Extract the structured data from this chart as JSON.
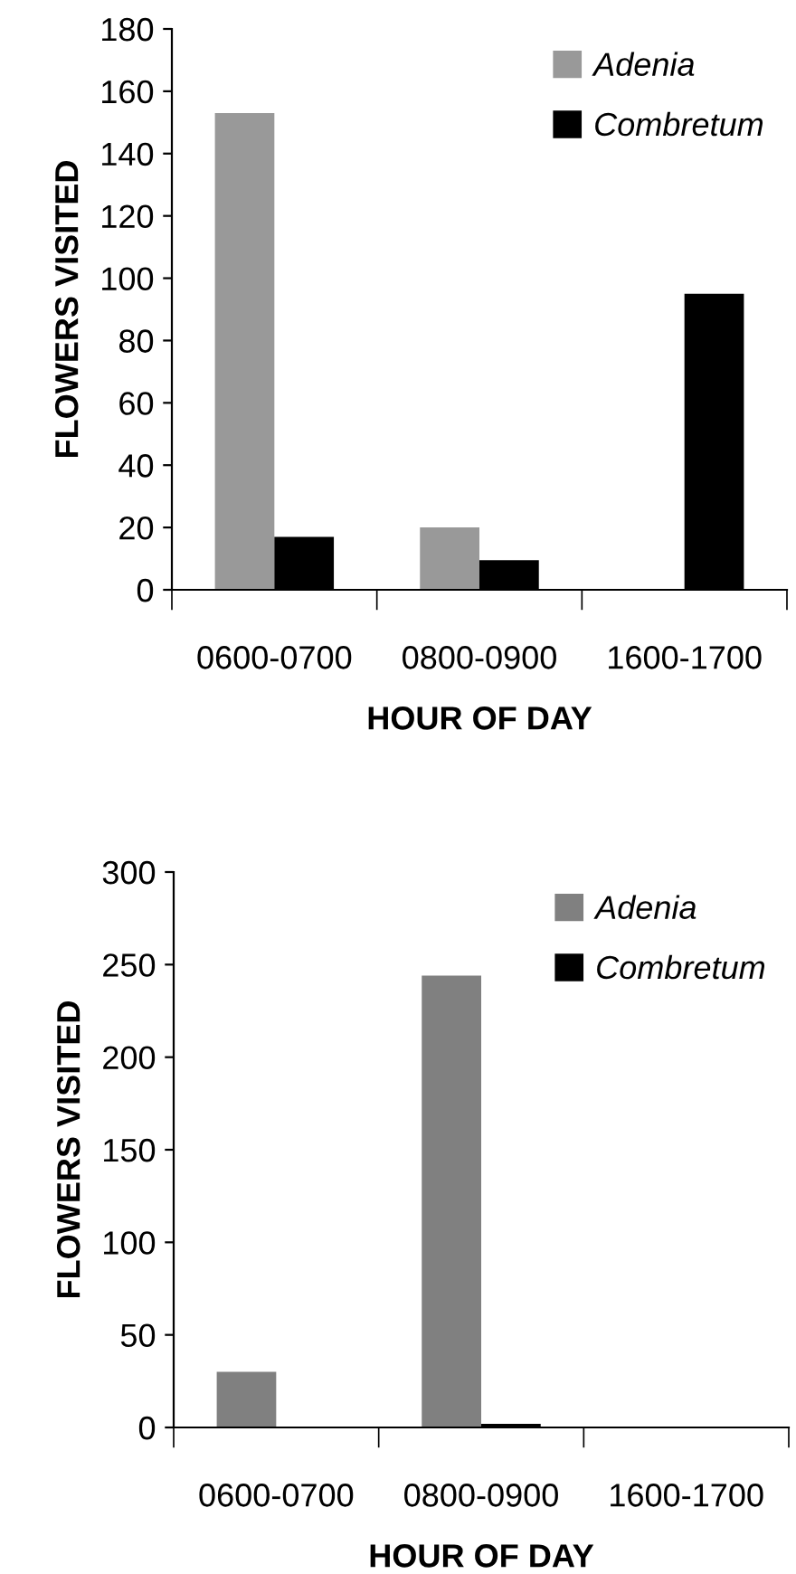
{
  "chart_data": [
    {
      "type": "bar",
      "categories": [
        "0600-0700",
        "0800-0900",
        "1600-1700"
      ],
      "xlabel": "HOUR OF DAY",
      "ylabel": "FLOWERS VISITED",
      "ylim": [
        0,
        180
      ],
      "yticks": [
        0,
        20,
        40,
        60,
        80,
        100,
        120,
        140,
        160,
        180
      ],
      "legend": "top right",
      "grid": false,
      "series": [
        {
          "name": "Adenia",
          "color": "#999999",
          "values": [
            153,
            20,
            0
          ]
        },
        {
          "name": "Combretum",
          "color": "#000000",
          "values": [
            17,
            9.5,
            95
          ]
        }
      ]
    },
    {
      "type": "bar",
      "categories": [
        "0600-0700",
        "0800-0900",
        "1600-1700"
      ],
      "xlabel": "HOUR OF DAY",
      "ylabel": "FLOWERS VISITED",
      "ylim": [
        0,
        300
      ],
      "yticks": [
        0,
        50,
        100,
        150,
        200,
        250,
        300
      ],
      "legend": "top right",
      "grid": false,
      "series": [
        {
          "name": "Adenia",
          "color": "#808080",
          "values": [
            30,
            244,
            0
          ]
        },
        {
          "name": "Combretum",
          "color": "#000000",
          "values": [
            0,
            2,
            0
          ]
        }
      ]
    }
  ]
}
